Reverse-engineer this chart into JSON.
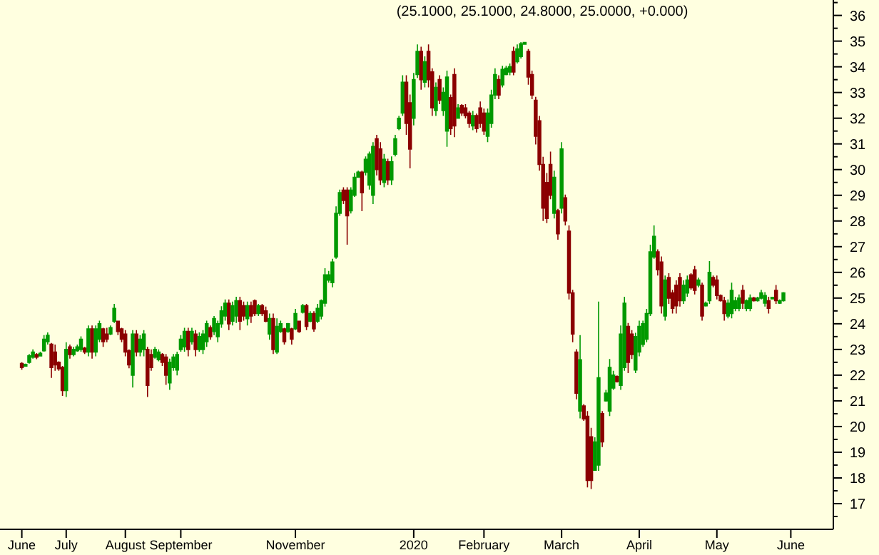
{
  "chart_data": {
    "type": "candlestick",
    "title": "(25.1000, 25.1000, 24.8000, 25.0000, +0.000)",
    "categories": [
      "June",
      null,
      null,
      null,
      null,
      null,
      null,
      null,
      null,
      null,
      null,
      null,
      "July",
      null,
      null,
      null,
      null,
      null,
      null,
      null,
      null,
      null,
      null,
      null,
      null,
      null,
      null,
      null,
      "August",
      null,
      null,
      null,
      null,
      null,
      null,
      null,
      null,
      null,
      null,
      null,
      null,
      null,
      null,
      "September",
      null,
      null,
      null,
      null,
      null,
      null,
      null,
      null,
      null,
      null,
      null,
      null,
      null,
      null,
      null,
      null,
      null,
      null,
      null,
      null,
      null,
      null,
      null,
      null,
      null,
      null,
      null,
      null,
      null,
      null,
      "November",
      null,
      null,
      null,
      null,
      null,
      null,
      null,
      null,
      null,
      null,
      null,
      null,
      null,
      null,
      null,
      null,
      null,
      null,
      null,
      null,
      null,
      null,
      null,
      null,
      null,
      null,
      null,
      null,
      null,
      null,
      null,
      "2020",
      null,
      null,
      null,
      null,
      null,
      null,
      null,
      null,
      null,
      null,
      null,
      null,
      null,
      null,
      null,
      null,
      null,
      null,
      "February",
      null,
      null,
      null,
      null,
      null,
      null,
      null,
      null,
      null,
      null,
      null,
      null,
      null,
      null,
      null,
      null,
      null,
      null,
      null,
      null,
      "March",
      null,
      null,
      null,
      null,
      null,
      null,
      null,
      null,
      null,
      null,
      null,
      null,
      null,
      null,
      null,
      null,
      null,
      null,
      null,
      null,
      "April",
      null,
      null,
      null,
      null,
      null,
      null,
      null,
      null,
      null,
      null,
      null,
      null,
      null,
      null,
      null,
      null,
      null,
      null,
      null,
      null,
      "May",
      null,
      null,
      null,
      null,
      null,
      null,
      null,
      null,
      null,
      null,
      null,
      null,
      null,
      null,
      null,
      null,
      null,
      null,
      null,
      "June",
      null,
      null,
      null,
      null,
      null,
      null,
      null,
      null,
      null,
      null,
      null
    ],
    "ohlc": [
      [
        22.45,
        22.5,
        22.21,
        22.3
      ],
      [
        22.35,
        22.45,
        22.33,
        22.42
      ],
      [
        22.5,
        22.82,
        22.45,
        22.75
      ],
      [
        22.7,
        23.0,
        22.64,
        22.9
      ],
      [
        22.8,
        22.86,
        22.62,
        22.7
      ],
      [
        22.75,
        22.91,
        22.73,
        22.85
      ],
      [
        22.95,
        23.56,
        22.91,
        23.4
      ],
      [
        23.3,
        23.66,
        23.19,
        23.55
      ],
      [
        23.2,
        23.25,
        21.89,
        22.3
      ],
      [
        22.9,
        23.19,
        22.17,
        22.4
      ],
      [
        22.5,
        22.54,
        22.17,
        22.25
      ],
      [
        22.3,
        22.36,
        21.19,
        21.4
      ],
      [
        21.4,
        23.28,
        21.15,
        23.0
      ],
      [
        23.1,
        23.19,
        22.64,
        22.8
      ],
      [
        22.8,
        23.1,
        22.73,
        23.0
      ],
      [
        22.95,
        23.19,
        22.91,
        23.1
      ],
      [
        23.0,
        23.51,
        22.91,
        23.4
      ],
      [
        23.05,
        23.1,
        22.82,
        22.9
      ],
      [
        22.9,
        23.93,
        22.73,
        23.8
      ],
      [
        23.8,
        23.93,
        22.64,
        22.9
      ],
      [
        22.9,
        23.93,
        22.73,
        23.8
      ],
      [
        23.4,
        24.12,
        23.28,
        24.0
      ],
      [
        23.8,
        23.84,
        23.1,
        23.3
      ],
      [
        23.6,
        23.84,
        23.28,
        23.4
      ],
      [
        23.6,
        23.93,
        23.56,
        23.85
      ],
      [
        24.1,
        24.77,
        24.03,
        24.6
      ],
      [
        24.1,
        24.12,
        23.56,
        23.7
      ],
      [
        23.8,
        23.84,
        23.28,
        23.4
      ],
      [
        23.6,
        23.75,
        22.73,
        22.9
      ],
      [
        22.95,
        23.0,
        22.27,
        22.4
      ],
      [
        22.0,
        23.75,
        21.52,
        23.6
      ],
      [
        23.6,
        23.75,
        22.73,
        22.9
      ],
      [
        22.9,
        23.56,
        22.73,
        23.4
      ],
      [
        23.0,
        23.75,
        22.73,
        23.6
      ],
      [
        23.0,
        23.1,
        21.15,
        21.6
      ],
      [
        22.8,
        23.0,
        22.17,
        22.3
      ],
      [
        22.7,
        23.1,
        22.64,
        23.0
      ],
      [
        22.6,
        23.0,
        22.54,
        22.9
      ],
      [
        22.8,
        22.86,
        22.36,
        22.5
      ],
      [
        22.7,
        22.82,
        21.62,
        22.0
      ],
      [
        21.7,
        22.64,
        21.43,
        22.5
      ],
      [
        22.3,
        22.82,
        22.17,
        22.7
      ],
      [
        22.2,
        22.91,
        21.99,
        22.8
      ],
      [
        23.0,
        23.56,
        22.91,
        23.4
      ],
      [
        23.1,
        23.84,
        22.91,
        23.7
      ],
      [
        23.7,
        23.84,
        22.73,
        23.0
      ],
      [
        23.3,
        23.84,
        23.19,
        23.7
      ],
      [
        23.6,
        23.75,
        22.73,
        23.0
      ],
      [
        23.0,
        23.66,
        22.91,
        23.5
      ],
      [
        23.0,
        23.75,
        22.82,
        23.6
      ],
      [
        23.3,
        24.12,
        23.1,
        24.0
      ],
      [
        23.85,
        23.93,
        23.38,
        23.5
      ],
      [
        23.7,
        24.3,
        23.56,
        24.2
      ],
      [
        23.5,
        24.12,
        23.28,
        24.0
      ],
      [
        24.0,
        24.68,
        23.84,
        24.5
      ],
      [
        24.3,
        24.95,
        24.12,
        24.8
      ],
      [
        24.8,
        24.95,
        23.75,
        24.0
      ],
      [
        24.1,
        24.86,
        23.93,
        24.7
      ],
      [
        24.3,
        25.05,
        24.03,
        24.9
      ],
      [
        24.9,
        25.05,
        23.75,
        24.1
      ],
      [
        24.7,
        24.86,
        24.12,
        24.3
      ],
      [
        24.2,
        24.86,
        23.93,
        24.7
      ],
      [
        24.7,
        24.86,
        24.03,
        24.3
      ],
      [
        24.9,
        24.95,
        24.3,
        24.4
      ],
      [
        24.4,
        24.77,
        24.3,
        24.7
      ],
      [
        24.7,
        24.77,
        24.3,
        24.4
      ],
      [
        24.5,
        24.67,
        24.06,
        24.1
      ],
      [
        23.6,
        24.4,
        23.38,
        24.2
      ],
      [
        24.2,
        24.4,
        22.82,
        23.0
      ],
      [
        22.9,
        24.21,
        22.82,
        23.9
      ],
      [
        23.7,
        24.12,
        23.65,
        24.0
      ],
      [
        23.8,
        23.84,
        23.19,
        23.3
      ],
      [
        23.7,
        24.03,
        23.65,
        24.0
      ],
      [
        23.8,
        23.84,
        23.19,
        23.4
      ],
      [
        23.8,
        24.58,
        23.75,
        24.4
      ],
      [
        24.1,
        24.12,
        23.65,
        23.7
      ],
      [
        24.45,
        24.77,
        24.4,
        24.7
      ],
      [
        24.7,
        24.77,
        23.75,
        23.9
      ],
      [
        24.1,
        24.49,
        24.06,
        24.4
      ],
      [
        24.4,
        24.49,
        23.69,
        23.8
      ],
      [
        24.1,
        24.77,
        24.03,
        24.6
      ],
      [
        24.3,
        24.95,
        24.17,
        24.9
      ],
      [
        24.8,
        26.16,
        24.67,
        25.9
      ],
      [
        25.7,
        26.06,
        25.6,
        25.9
      ],
      [
        25.6,
        26.53,
        25.42,
        26.4
      ],
      [
        26.6,
        28.57,
        26.53,
        28.3
      ],
      [
        28.3,
        29.22,
        28.2,
        29.1
      ],
      [
        29.2,
        29.31,
        28.66,
        28.8
      ],
      [
        29.2,
        29.31,
        27.08,
        28.2
      ],
      [
        28.4,
        29.31,
        28.29,
        29.2
      ],
      [
        29.0,
        29.87,
        28.94,
        29.7
      ],
      [
        29.7,
        29.96,
        29.68,
        29.9
      ],
      [
        29.9,
        29.96,
        28.38,
        29.1
      ],
      [
        29.9,
        30.51,
        29.77,
        30.4
      ],
      [
        29.4,
        30.7,
        29.22,
        30.6
      ],
      [
        29.0,
        31.07,
        28.66,
        30.9
      ],
      [
        31.2,
        31.35,
        29.77,
        30.0
      ],
      [
        30.8,
        31.07,
        29.4,
        29.6
      ],
      [
        29.5,
        30.61,
        29.31,
        30.4
      ],
      [
        30.3,
        30.42,
        29.4,
        29.6
      ],
      [
        29.6,
        30.51,
        29.4,
        30.3
      ],
      [
        30.6,
        31.35,
        30.51,
        31.2
      ],
      [
        31.6,
        32.09,
        31.53,
        32.0
      ],
      [
        32.2,
        33.67,
        32.09,
        33.4
      ],
      [
        33.4,
        33.67,
        31.35,
        31.8
      ],
      [
        32.6,
        32.92,
        30.05,
        30.8
      ],
      [
        32.0,
        33.76,
        31.72,
        33.5
      ],
      [
        33.7,
        34.87,
        33.57,
        34.6
      ],
      [
        34.6,
        34.78,
        33.11,
        33.5
      ],
      [
        33.4,
        34.41,
        33.2,
        34.2
      ],
      [
        34.6,
        34.87,
        33.2,
        33.5
      ],
      [
        33.8,
        33.94,
        32.09,
        32.4
      ],
      [
        32.3,
        33.39,
        32.09,
        33.2
      ],
      [
        33.5,
        33.67,
        32.55,
        32.7
      ],
      [
        32.3,
        33.2,
        32.09,
        33.0
      ],
      [
        31.5,
        33.85,
        30.89,
        33.6
      ],
      [
        32.8,
        32.92,
        31.35,
        31.6
      ],
      [
        33.7,
        33.94,
        31.26,
        31.7
      ],
      [
        32.0,
        32.55,
        31.99,
        32.4
      ],
      [
        32.5,
        32.55,
        32.09,
        32.2
      ],
      [
        32.4,
        32.55,
        31.99,
        32.1
      ],
      [
        32.2,
        32.28,
        31.63,
        31.8
      ],
      [
        31.7,
        32.28,
        31.53,
        32.1
      ],
      [
        32.1,
        32.18,
        31.44,
        31.6
      ],
      [
        32.4,
        32.65,
        31.63,
        31.8
      ],
      [
        32.2,
        32.37,
        31.35,
        31.5
      ],
      [
        31.3,
        32.37,
        31.07,
        32.2
      ],
      [
        31.8,
        33.11,
        31.63,
        32.9
      ],
      [
        32.9,
        33.94,
        32.74,
        33.7
      ],
      [
        33.5,
        33.67,
        32.74,
        32.9
      ],
      [
        33.3,
        34.04,
        33.2,
        33.9
      ],
      [
        33.7,
        34.04,
        33.67,
        33.95
      ],
      [
        33.8,
        34.13,
        33.67,
        34.0
      ],
      [
        34.6,
        34.78,
        33.67,
        33.8
      ],
      [
        34.2,
        34.87,
        34.13,
        34.7
      ],
      [
        34.4,
        34.96,
        34.32,
        34.9
      ],
      [
        34.88,
        34.96,
        34.87,
        34.95
      ],
      [
        34.6,
        34.69,
        33.3,
        33.6
      ],
      [
        33.7,
        33.85,
        32.74,
        32.9
      ],
      [
        32.7,
        32.83,
        30.98,
        31.3
      ],
      [
        31.9,
        32.09,
        29.96,
        30.2
      ],
      [
        30.2,
        30.5,
        28.0,
        28.5
      ],
      [
        29.5,
        29.87,
        27.92,
        28.1
      ],
      [
        30.2,
        30.7,
        28.85,
        29.0
      ],
      [
        28.3,
        29.96,
        28.1,
        29.7
      ],
      [
        28.4,
        28.47,
        27.27,
        27.5
      ],
      [
        28.5,
        31.07,
        28.29,
        30.8
      ],
      [
        28.9,
        29.03,
        27.83,
        28.0
      ],
      [
        27.6,
        27.83,
        24.95,
        25.2
      ],
      [
        25.2,
        25.32,
        23.28,
        23.6
      ],
      [
        22.9,
        23.01,
        21.06,
        21.3
      ],
      [
        20.6,
        23.56,
        20.32,
        22.6
      ],
      [
        20.8,
        20.87,
        20.22,
        20.3
      ],
      [
        20.4,
        20.6,
        17.63,
        17.9
      ],
      [
        19.6,
        19.95,
        17.57,
        17.9
      ],
      [
        18.3,
        19.58,
        18.28,
        19.4
      ],
      [
        18.5,
        24.86,
        18.28,
        21.9
      ],
      [
        20.5,
        20.6,
        19.2,
        19.4
      ],
      [
        21.0,
        21.43,
        20.97,
        21.3
      ],
      [
        20.6,
        22.63,
        20.41,
        22.3
      ],
      [
        21.5,
        22.17,
        21.43,
        22.0
      ],
      [
        21.95,
        21.99,
        21.71,
        21.75
      ],
      [
        21.6,
        23.93,
        21.43,
        23.6
      ],
      [
        22.3,
        25.05,
        22.17,
        24.8
      ],
      [
        23.9,
        24.03,
        22.08,
        22.5
      ],
      [
        23.6,
        23.75,
        22.63,
        22.8
      ],
      [
        22.2,
        23.65,
        22.08,
        23.5
      ],
      [
        22.9,
        24.12,
        22.73,
        23.9
      ],
      [
        23.2,
        24.12,
        23.1,
        24.0
      ],
      [
        23.4,
        24.58,
        23.28,
        24.4
      ],
      [
        24.4,
        27.08,
        24.3,
        26.8
      ],
      [
        26.6,
        27.83,
        26.53,
        27.4
      ],
      [
        26.8,
        26.9,
        25.88,
        26.1
      ],
      [
        26.4,
        26.62,
        24.4,
        24.7
      ],
      [
        24.3,
        25.88,
        24.12,
        25.7
      ],
      [
        25.8,
        25.97,
        24.77,
        25.0
      ],
      [
        25.2,
        25.32,
        24.4,
        24.6
      ],
      [
        25.5,
        25.69,
        24.4,
        24.7
      ],
      [
        25.8,
        25.97,
        24.67,
        24.9
      ],
      [
        24.9,
        25.69,
        24.77,
        25.5
      ],
      [
        25.2,
        25.88,
        25.05,
        25.7
      ],
      [
        25.9,
        25.97,
        25.32,
        25.4
      ],
      [
        26.1,
        26.25,
        25.14,
        25.3
      ],
      [
        25.5,
        25.79,
        25.42,
        25.7
      ],
      [
        25.5,
        25.6,
        24.12,
        24.3
      ],
      [
        24.7,
        24.86,
        24.67,
        24.8
      ],
      [
        24.9,
        26.44,
        24.77,
        26.0
      ],
      [
        25.8,
        25.88,
        25.42,
        25.5
      ],
      [
        25.7,
        25.88,
        24.95,
        25.1
      ],
      [
        25.1,
        25.14,
        24.86,
        24.9
      ],
      [
        24.9,
        25.05,
        24.12,
        24.4
      ],
      [
        24.3,
        24.95,
        24.21,
        24.8
      ],
      [
        24.4,
        25.6,
        24.21,
        25.3
      ],
      [
        24.6,
        25.05,
        24.49,
        24.9
      ],
      [
        24.6,
        25.14,
        24.49,
        25.0
      ],
      [
        25.3,
        25.51,
        24.58,
        24.8
      ],
      [
        24.6,
        24.95,
        24.49,
        24.9
      ],
      [
        24.6,
        25.14,
        24.49,
        25.0
      ],
      [
        25.0,
        25.05,
        24.86,
        24.9
      ],
      [
        24.9,
        25.05,
        24.86,
        25.0
      ],
      [
        25.0,
        25.32,
        24.95,
        25.2
      ],
      [
        24.8,
        25.23,
        24.67,
        25.1
      ],
      [
        24.9,
        25.05,
        24.4,
        24.6
      ],
      [
        24.97,
        25.05,
        24.95,
        25.03
      ],
      [
        25.3,
        25.51,
        24.77,
        24.9
      ],
      [
        24.8,
        24.95,
        24.77,
        24.9
      ],
      [
        24.9,
        25.23,
        24.86,
        25.2
      ],
      null,
      null,
      null,
      null,
      null,
      null,
      null,
      null,
      null,
      null,
      null,
      null,
      null
    ],
    "ylim": [
      16,
      36.6
    ],
    "yticks": [
      {
        "value": 16.5,
        "label": null
      },
      17,
      {
        "value": 17.5,
        "label": null
      },
      18,
      {
        "value": 18.5,
        "label": null
      },
      19,
      {
        "value": 19.5,
        "label": null
      },
      20,
      {
        "value": 20.5,
        "label": null
      },
      21,
      {
        "value": 21.5,
        "label": null
      },
      22,
      {
        "value": 22.5,
        "label": null
      },
      23,
      {
        "value": 23.5,
        "label": null
      },
      24,
      {
        "value": 24.5,
        "label": null
      },
      25,
      {
        "value": 25.5,
        "label": null
      },
      26,
      {
        "value": 26.5,
        "label": null
      },
      27,
      {
        "value": 27.5,
        "label": null
      },
      28,
      {
        "value": 28.5,
        "label": null
      },
      29,
      {
        "value": 29.5,
        "label": null
      },
      30,
      {
        "value": 30.5,
        "label": null
      },
      31,
      {
        "value": 31.5,
        "label": null
      },
      32,
      {
        "value": 32.5,
        "label": null
      },
      33,
      {
        "value": 33.5,
        "label": null
      },
      34,
      {
        "value": 34.5,
        "label": null
      },
      35,
      {
        "value": 35.5,
        "label": null
      },
      36,
      {
        "value": 36.5,
        "label": null
      }
    ],
    "grid": false
  }
}
